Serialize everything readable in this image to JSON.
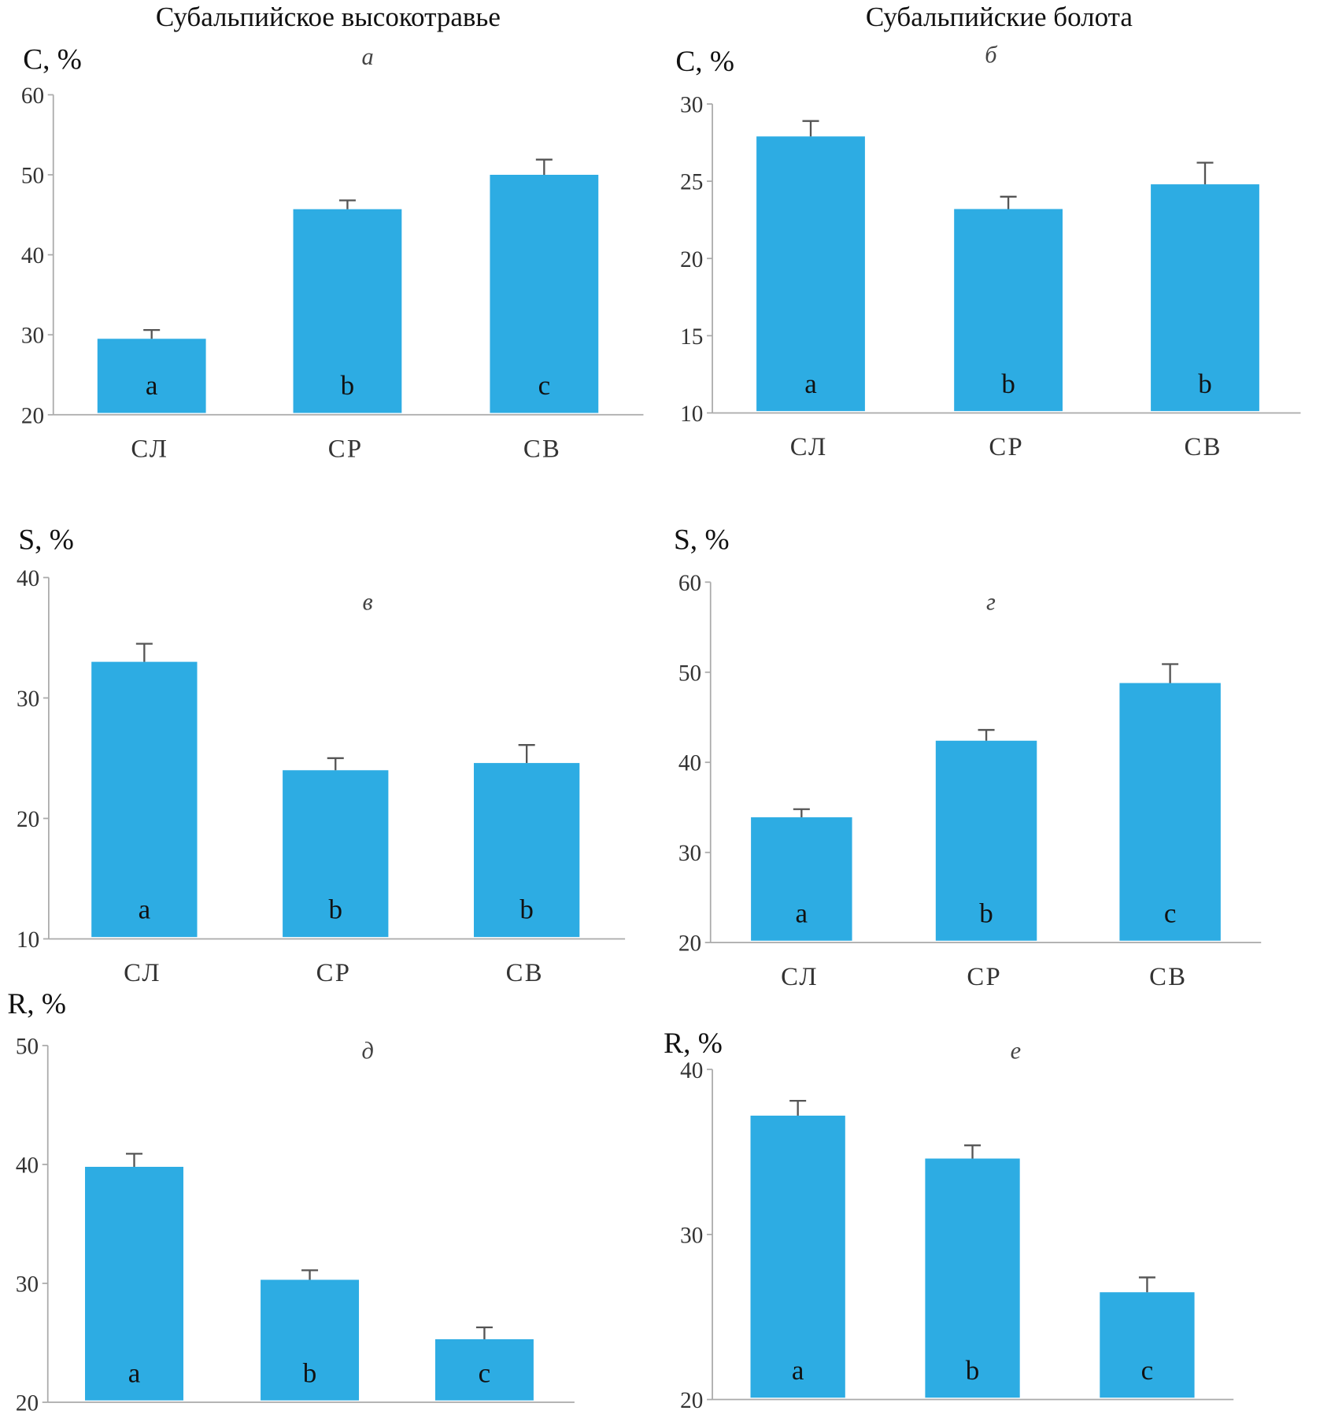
{
  "titles": {
    "left": "Субальпийское высокотравье",
    "right": "Субальпийские болота"
  },
  "colors": {
    "bar": "#2DACE3",
    "axis": "#aaaaaa",
    "error_bar": "#555555"
  },
  "chart_data": [
    {
      "type": "bar",
      "panel": "а",
      "ylabel": "С, %",
      "ylim": [
        20,
        60
      ],
      "yticks": [
        20,
        30,
        40,
        50,
        60
      ],
      "categories": [
        "СЛ",
        "СР",
        "СВ"
      ],
      "values": [
        29.5,
        45.7,
        50.0
      ],
      "error_upper": [
        30.6,
        46.8,
        51.9
      ],
      "significance": [
        "a",
        "b",
        "c"
      ]
    },
    {
      "type": "bar",
      "panel": "б",
      "ylabel": "С, %",
      "ylim": [
        10,
        30
      ],
      "yticks": [
        10,
        15,
        20,
        25,
        30
      ],
      "categories": [
        "СЛ",
        "СР",
        "СВ"
      ],
      "values": [
        27.9,
        23.2,
        24.8
      ],
      "error_upper": [
        28.9,
        24.0,
        26.2
      ],
      "significance": [
        "a",
        "b",
        "b"
      ]
    },
    {
      "type": "bar",
      "panel": "в",
      "ylabel": "S, %",
      "ylim": [
        10,
        40
      ],
      "yticks": [
        10,
        20,
        30,
        40
      ],
      "categories": [
        "СЛ",
        "СР",
        "СВ"
      ],
      "values": [
        33.0,
        24.0,
        24.6
      ],
      "error_upper": [
        34.5,
        25.0,
        26.1
      ],
      "significance": [
        "a",
        "b",
        "b"
      ]
    },
    {
      "type": "bar",
      "panel": "г",
      "ylabel": "S, %",
      "ylim": [
        20,
        60
      ],
      "yticks": [
        20,
        30,
        40,
        50,
        60
      ],
      "categories": [
        "СЛ",
        "СР",
        "СВ"
      ],
      "values": [
        33.9,
        42.4,
        48.8
      ],
      "error_upper": [
        34.8,
        43.6,
        50.9
      ],
      "significance": [
        "a",
        "b",
        "c"
      ]
    },
    {
      "type": "bar",
      "panel": "д",
      "ylabel": "R, %",
      "ylim": [
        20,
        50
      ],
      "yticks": [
        20,
        30,
        40,
        50
      ],
      "categories": [
        "СЛ",
        "СР",
        "СВ"
      ],
      "values": [
        39.8,
        30.3,
        25.3
      ],
      "error_upper": [
        40.9,
        31.1,
        26.3
      ],
      "significance": [
        "a",
        "b",
        "c"
      ]
    },
    {
      "type": "bar",
      "panel": "е",
      "ylabel": "R, %",
      "ylim": [
        20,
        40
      ],
      "yticks": [
        20,
        30,
        40
      ],
      "categories": [
        "СЛ",
        "СР",
        "СВ"
      ],
      "values": [
        37.2,
        34.6,
        26.5
      ],
      "error_upper": [
        38.1,
        35.4,
        27.4
      ],
      "significance": [
        "a",
        "b",
        "c"
      ]
    }
  ]
}
